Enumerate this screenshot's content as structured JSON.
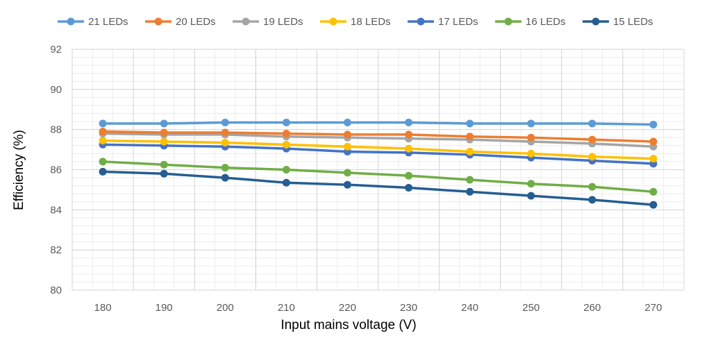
{
  "chart_data": {
    "type": "line",
    "title": "",
    "xlabel": "Input mains voltage (V)",
    "ylabel": "Efficiency (%)",
    "x": [
      180,
      190,
      200,
      210,
      220,
      230,
      240,
      250,
      260,
      270
    ],
    "x_tick_labels": [
      "180",
      "190",
      "200",
      "210",
      "220",
      "230",
      "240",
      "250",
      "260",
      "270"
    ],
    "ylim": [
      80,
      92
    ],
    "y_ticks": [
      80,
      82,
      84,
      86,
      88,
      90,
      92
    ],
    "y_tick_labels": [
      "80",
      "82",
      "84",
      "86",
      "88",
      "90",
      "92"
    ],
    "grid": true,
    "legend_position": "top",
    "series": [
      {
        "name": "21 LEDs",
        "color": "#5b9bd5",
        "values": [
          88.3,
          88.3,
          88.35,
          88.35,
          88.35,
          88.35,
          88.3,
          88.3,
          88.3,
          88.25
        ]
      },
      {
        "name": "20 LEDs",
        "color": "#ed7d31",
        "values": [
          87.9,
          87.85,
          87.85,
          87.8,
          87.75,
          87.75,
          87.65,
          87.6,
          87.5,
          87.4
        ]
      },
      {
        "name": "19 LEDs",
        "color": "#a5a5a5",
        "values": [
          87.8,
          87.75,
          87.75,
          87.65,
          87.6,
          87.55,
          87.5,
          87.4,
          87.3,
          87.15
        ]
      },
      {
        "name": "18 LEDs",
        "color": "#ffc000",
        "values": [
          87.45,
          87.4,
          87.35,
          87.25,
          87.15,
          87.05,
          86.9,
          86.8,
          86.65,
          86.55
        ]
      },
      {
        "name": "17 LEDs",
        "color": "#4472c4",
        "values": [
          87.25,
          87.2,
          87.15,
          87.05,
          86.9,
          86.85,
          86.75,
          86.6,
          86.45,
          86.3
        ]
      },
      {
        "name": "16 LEDs",
        "color": "#70ad47",
        "values": [
          86.4,
          86.25,
          86.1,
          86.0,
          85.85,
          85.7,
          85.5,
          85.3,
          85.15,
          84.9
        ]
      },
      {
        "name": "15 LEDs",
        "color": "#255e91",
        "values": [
          85.9,
          85.8,
          85.6,
          85.35,
          85.25,
          85.1,
          84.9,
          84.7,
          84.5,
          84.25
        ]
      }
    ]
  }
}
